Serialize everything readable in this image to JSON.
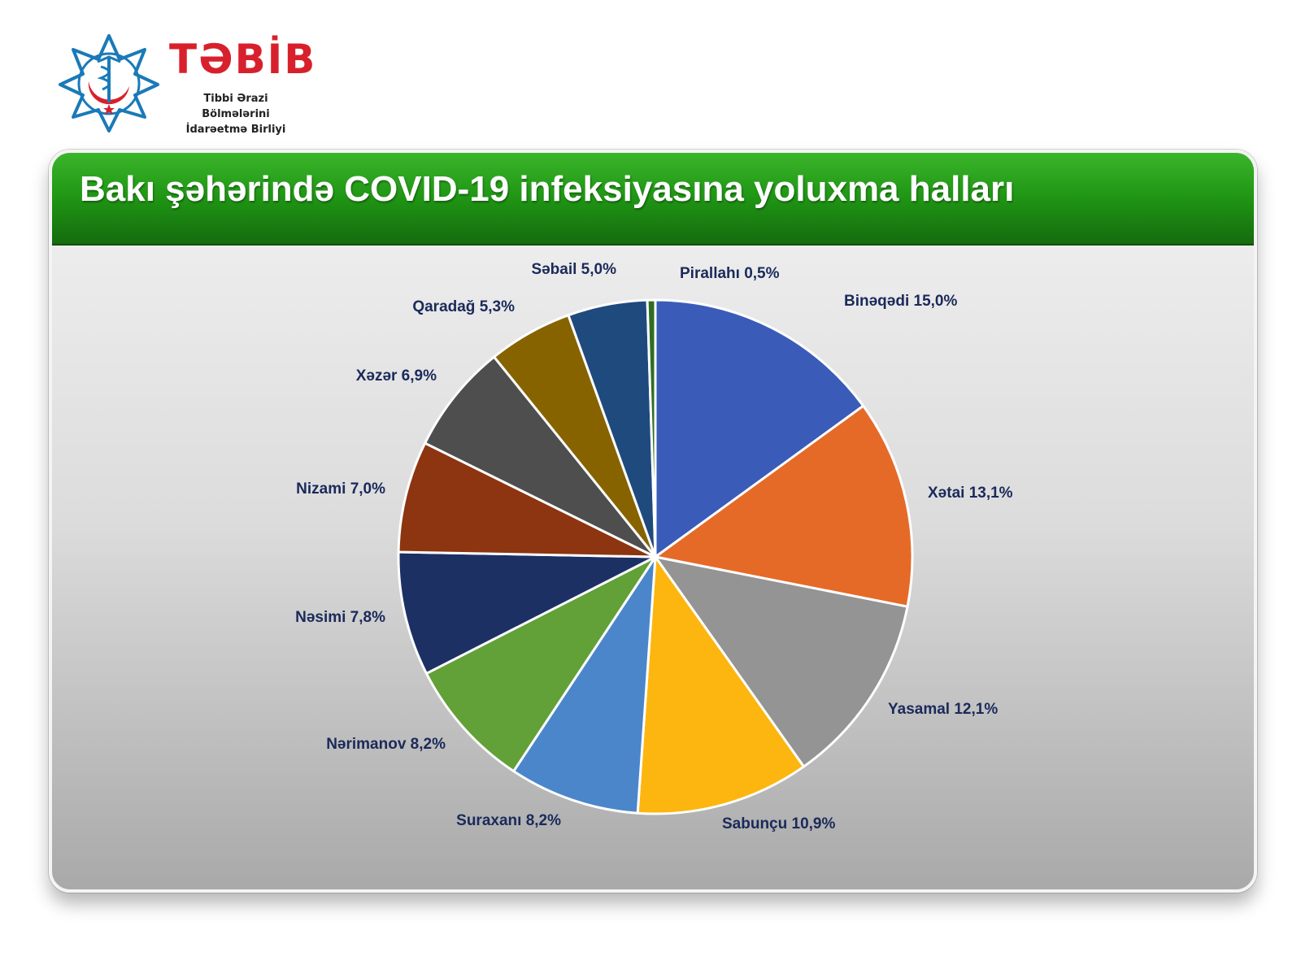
{
  "logo": {
    "wordmark": "TƏBİB",
    "subtitle_line1": "Tibbi Ərazi Bölmələrini",
    "subtitle_line2": "İdarəetmə Birliyi",
    "brand_color": "#d8202c",
    "emblem_color": "#1a7ab8"
  },
  "title": "Bakı şəhərində COVID-19 infeksiyasına yoluxma halları",
  "colors": {
    "header_green": "#1f9514",
    "label_text": "#1a2a5a"
  },
  "chart_data": {
    "type": "pie",
    "title": "Bakı şəhərində COVID-19 infeksiyasına yoluxma halları",
    "slices": [
      {
        "label": "Binəqədi 15,0%",
        "value": 15.0,
        "color": "#3a5cb8"
      },
      {
        "label": "Xətai 13,1%",
        "value": 13.1,
        "color": "#e56a28"
      },
      {
        "label": "Yasamal 12,1%",
        "value": 12.1,
        "color": "#949494"
      },
      {
        "label": "Sabunçu 10,9%",
        "value": 10.9,
        "color": "#fcb60f"
      },
      {
        "label": "Suraxanı 8,2%",
        "value": 8.2,
        "color": "#4b86cb"
      },
      {
        "label": "Nərimanov 8,2%",
        "value": 8.2,
        "color": "#62a038"
      },
      {
        "label": "Nəsimi 7,8%",
        "value": 7.8,
        "color": "#1d3064"
      },
      {
        "label": "Nizami 7,0%",
        "value": 7.0,
        "color": "#8c3510"
      },
      {
        "label": "Xəzər 6,9%",
        "value": 6.9,
        "color": "#4e4e4e"
      },
      {
        "label": "Qaradağ 5,3%",
        "value": 5.3,
        "color": "#876300"
      },
      {
        "label": "Səbail 5,0%",
        "value": 5.0,
        "color": "#1f4a7e"
      },
      {
        "label": "Pirallahı 0,5%",
        "value": 0.5,
        "color": "#2f6e22"
      }
    ]
  }
}
